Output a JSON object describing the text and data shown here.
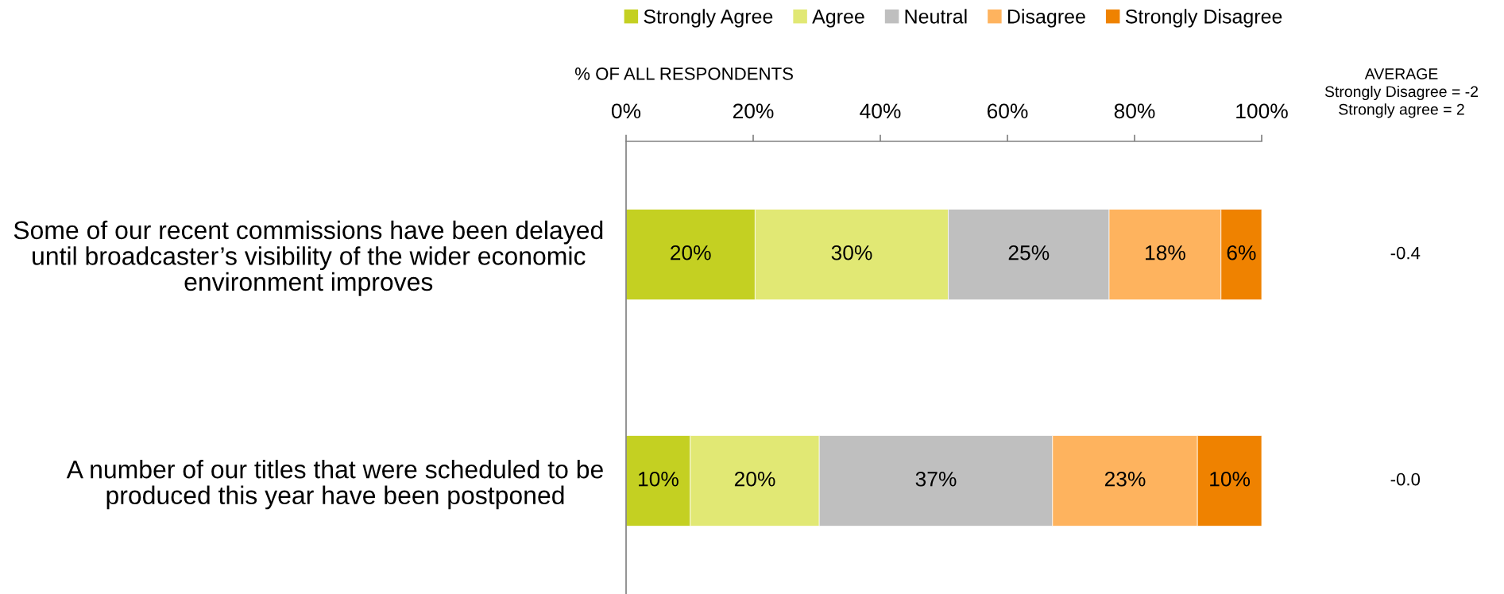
{
  "chart_data": {
    "type": "bar",
    "orientation": "horizontal",
    "stacked": true,
    "xlabel": "% OF ALL RESPONDENTS",
    "categories": [
      "Some of our recent commissions have been delayed\nuntil broadcaster’s visibility of the wider economic\nenvironment improves",
      "A number of our titles that were scheduled to be\nproduced this year have been postponed"
    ],
    "series": [
      {
        "name": "Strongly Agree",
        "color": "#c4d022",
        "values": [
          20.3,
          10.1
        ],
        "value_labels": [
          "20%",
          "10%"
        ]
      },
      {
        "name": "Agree",
        "color": "#e1e874",
        "values": [
          30.4,
          20.3
        ],
        "value_labels": [
          "30%",
          "20%"
        ]
      },
      {
        "name": "Neutral",
        "color": "#bfbfbf",
        "values": [
          25.3,
          36.7
        ],
        "value_labels": [
          "25%",
          "37%"
        ]
      },
      {
        "name": "Disagree",
        "color": "#feb35e",
        "values": [
          17.6,
          22.8
        ],
        "value_labels": [
          "18%",
          "23%"
        ]
      },
      {
        "name": "Strongly Disagree",
        "color": "#ef8200",
        "values": [
          6.4,
          10.1
        ],
        "value_labels": [
          "6%",
          "10%"
        ]
      }
    ],
    "xlim": [
      0,
      100
    ],
    "xticks": [
      {
        "value": 0,
        "label": "0%"
      },
      {
        "value": 20,
        "label": "20%"
      },
      {
        "value": 40,
        "label": "40%"
      },
      {
        "value": 60,
        "label": "60%"
      },
      {
        "value": 80,
        "label": "80%"
      },
      {
        "value": 100,
        "label": "100%"
      }
    ],
    "legend": "top",
    "grid": false,
    "annotations": [
      "AVERAGE\nStrongly Disagree = -2\nStrongly agree = 2",
      "-0.4",
      "-0.0"
    ]
  }
}
